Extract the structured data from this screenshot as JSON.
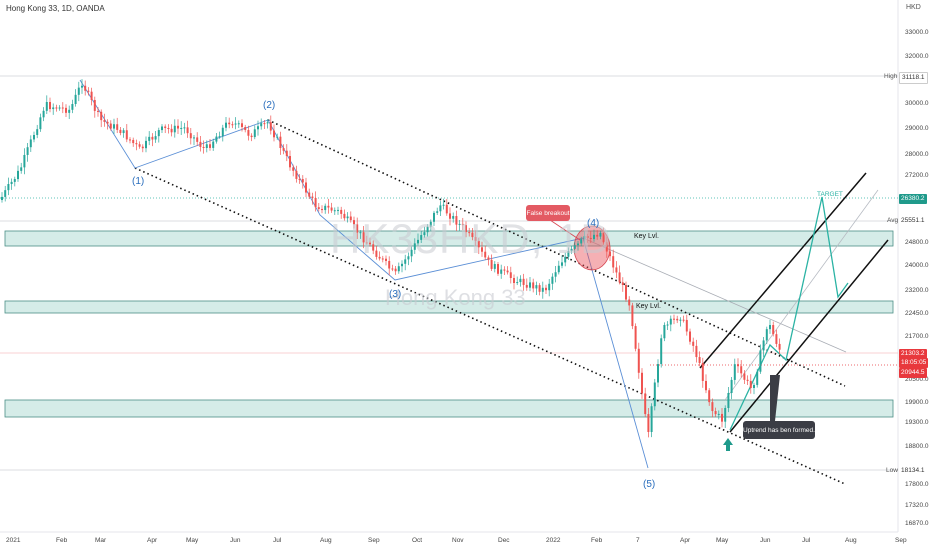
{
  "header": {
    "title": "Hong Kong 33, 1D, OANDA",
    "currency": "HKD"
  },
  "watermark": {
    "symbol": "HK33HKD, 1D",
    "name": "Hong Kong 33"
  },
  "price_axis": {
    "ticks": [
      "33000.0",
      "32000.0",
      "31118.1",
      "30000.0",
      "29000.0",
      "28000.0",
      "27200.0",
      "26380.2",
      "25551.1",
      "24800.0",
      "24000.0",
      "23200.0",
      "22450.0",
      "21700.0",
      "21303.2",
      "20944.5",
      "20500.0",
      "19900.0",
      "19300.0",
      "18800.0",
      "18134.1",
      "17800.0",
      "17320.0",
      "16870.0"
    ]
  },
  "time_axis": {
    "ticks": [
      "2021",
      "Feb",
      "Mar",
      "Apr",
      "May",
      "Jun",
      "Jul",
      "Aug",
      "Sep",
      "Oct",
      "Nov",
      "Dec",
      "2022",
      "Feb",
      "7",
      "Apr",
      "May",
      "Jun",
      "Jul",
      "Aug",
      "Sep"
    ]
  },
  "price_labels": {
    "high": {
      "tag": "High",
      "value": "31118.1"
    },
    "target": {
      "value": "26380.2"
    },
    "avg": {
      "tag": "Avg",
      "value": "25551.1"
    },
    "current": {
      "value": "21303.2",
      "countdown": "18:05:05"
    },
    "prev": {
      "value": "20944.5"
    },
    "low": {
      "tag": "Low",
      "value": "18134.1"
    }
  },
  "annotations": {
    "wave_1": "(1)",
    "wave_2": "(2)",
    "wave_3": "(3)",
    "wave_4": "(4)",
    "wave_5": "(5)",
    "key_level_1": "Key Lvl.",
    "key_level_2": "Key Lvl.",
    "false_breakout": "False breakout",
    "uptrend": "Uptrend has ben formed.",
    "target": "TARGET"
  },
  "colors": {
    "up": "#26a69a",
    "down": "#ef5350",
    "zone": "#d5ece8",
    "zone_border": "#4b8f86",
    "wave_line": "#5b8fd6",
    "projection": "#2bb3a4",
    "current": "#e8383d"
  },
  "chart_data": {
    "type": "candlestick",
    "symbol": "HK33HKD",
    "timeframe": "1D",
    "broker": "OANDA",
    "ylim": [
      16870,
      33000
    ],
    "levels": {
      "high": 31118.1,
      "target": 26380.2,
      "avg": 25551.1,
      "current": 21303.2,
      "prev_close": 20944.5,
      "low": 18134.1
    },
    "key_zones": [
      [
        24900,
        25300
      ],
      [
        22700,
        23000
      ],
      [
        19300,
        19900
      ]
    ],
    "waves": [
      {
        "label": "(1)",
        "date": "2021-03",
        "price": 27600
      },
      {
        "label": "(2)",
        "date": "2021-07",
        "price": 29300
      },
      {
        "label": "(3)",
        "date": "2021-10",
        "price": 24200
      },
      {
        "label": "(4)",
        "date": "2022-02",
        "price": 24900
      },
      {
        "label": "(5)",
        "date": "2022-03",
        "price": 18134
      }
    ]
  }
}
